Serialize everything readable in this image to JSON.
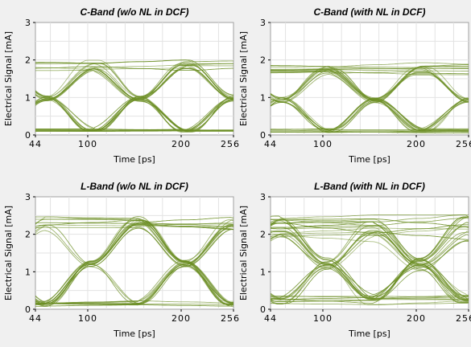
{
  "chart_data": [
    {
      "type": "line",
      "title": "C-Band (w/o NL in DCF)",
      "xlabel": "Time [ps]",
      "ylabel": "Electrical Signal [mA]",
      "xlim": [
        44,
        256
      ],
      "ylim": [
        0,
        3
      ],
      "x_ticks": [
        44,
        100,
        200,
        256
      ],
      "y_ticks": [
        0,
        1,
        2,
        3
      ],
      "grid": true,
      "eye_pattern": {
        "bit_period_ps": 100,
        "crossing_ps": [
          56,
          156,
          256
        ],
        "high_mA": 1.85,
        "low_mA": 0.05,
        "spread_mA": 0.12,
        "traces": 34
      },
      "color": "#6b8e23"
    },
    {
      "type": "line",
      "title": "C-Band (with NL in DCF)",
      "xlabel": "Time [ps]",
      "ylabel": "Electrical Signal [mA]",
      "xlim": [
        44,
        256
      ],
      "ylim": [
        0,
        3
      ],
      "x_ticks": [
        44,
        100,
        200,
        256
      ],
      "y_ticks": [
        0,
        1,
        2,
        3
      ],
      "grid": true,
      "eye_pattern": {
        "bit_period_ps": 100,
        "crossing_ps": [
          56,
          156,
          256
        ],
        "high_mA": 1.75,
        "low_mA": 0.05,
        "spread_mA": 0.14,
        "traces": 34
      },
      "color": "#6b8e23"
    },
    {
      "type": "line",
      "title": "L-Band (w/o NL in DCF)",
      "xlabel": "Time [ps]",
      "ylabel": "Electrical Signal [mA]",
      "xlim": [
        44,
        256
      ],
      "ylim": [
        0,
        3
      ],
      "x_ticks": [
        44,
        100,
        200,
        256
      ],
      "y_ticks": [
        0,
        1,
        2,
        3
      ],
      "grid": true,
      "eye_pattern": {
        "bit_period_ps": 100,
        "crossing_ps": [
          104,
          204
        ],
        "high_mA": 2.3,
        "low_mA": 0.05,
        "spread_mA": 0.18,
        "traces": 34
      },
      "color": "#6b8e23"
    },
    {
      "type": "line",
      "title": "L-Band (with NL in DCF)",
      "xlabel": "Time [ps]",
      "ylabel": "Electrical Signal [mA]",
      "xlim": [
        44,
        256
      ],
      "ylim": [
        0,
        3
      ],
      "x_ticks": [
        44,
        100,
        200,
        256
      ],
      "y_ticks": [
        0,
        1,
        2,
        3
      ],
      "grid": true,
      "eye_pattern": {
        "bit_period_ps": 100,
        "crossing_ps": [
          104,
          204
        ],
        "high_mA": 2.2,
        "low_mA": 0.1,
        "spread_mA": 0.3,
        "traces": 40
      },
      "color": "#6b8e23"
    }
  ]
}
